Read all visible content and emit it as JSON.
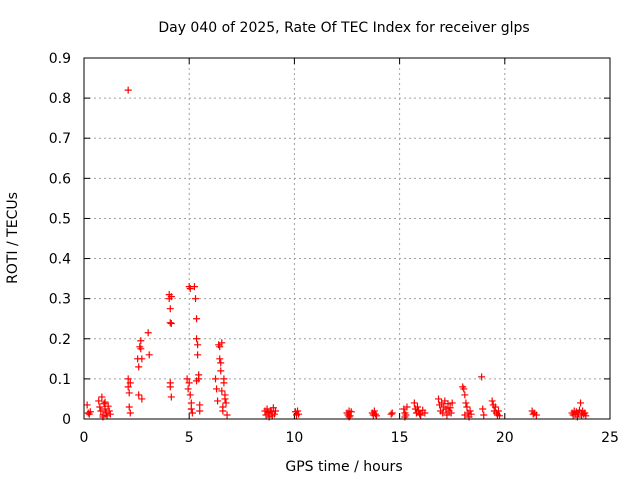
{
  "chart_data": {
    "type": "scatter",
    "title": "Day 040 of 2025, Rate Of TEC Index for receiver glps",
    "xlabel": "GPS time / hours",
    "ylabel": "ROTI / TECUs",
    "xlim": [
      0,
      25
    ],
    "ylim": [
      0,
      0.9
    ],
    "xticks": [
      0,
      5,
      10,
      15,
      20,
      25
    ],
    "xtick_labels": [
      "0",
      "5",
      "10",
      "15",
      "20",
      "25"
    ],
    "yticks": [
      0,
      0.1,
      0.2,
      0.3,
      0.4,
      0.5,
      0.6,
      0.7,
      0.8,
      0.9
    ],
    "ytick_labels": [
      "0",
      "0.1",
      "0.2",
      "0.3",
      "0.4",
      "0.5",
      "0.6",
      "0.7",
      "0.8",
      "0.9"
    ],
    "grid": true,
    "marker": "+",
    "color": "#ff0000",
    "series": [
      {
        "name": "ROTI",
        "points": [
          [
            0.15,
            0.035
          ],
          [
            0.2,
            0.015
          ],
          [
            0.25,
            0.012
          ],
          [
            0.3,
            0.018
          ],
          [
            0.7,
            0.045
          ],
          [
            0.75,
            0.03
          ],
          [
            0.8,
            0.02
          ],
          [
            0.85,
            0.055
          ],
          [
            0.9,
            0.01
          ],
          [
            0.95,
            0.038
          ],
          [
            1.0,
            0.025
          ],
          [
            1.05,
            0.015
          ],
          [
            1.1,
            0.008
          ],
          [
            1.15,
            0.032
          ],
          [
            1.2,
            0.02
          ],
          [
            1.25,
            0.012
          ],
          [
            0.9,
            0.005
          ],
          [
            1.0,
            0.042
          ],
          [
            2.1,
            0.82
          ],
          [
            2.1,
            0.1
          ],
          [
            2.1,
            0.08
          ],
          [
            2.15,
            0.065
          ],
          [
            2.15,
            0.03
          ],
          [
            2.2,
            0.015
          ],
          [
            2.2,
            0.09
          ],
          [
            2.55,
            0.15
          ],
          [
            2.6,
            0.13
          ],
          [
            2.6,
            0.06
          ],
          [
            2.65,
            0.18
          ],
          [
            2.7,
            0.195
          ],
          [
            2.7,
            0.175
          ],
          [
            2.75,
            0.05
          ],
          [
            2.75,
            0.15
          ],
          [
            3.05,
            0.215
          ],
          [
            3.1,
            0.16
          ],
          [
            4.05,
            0.31
          ],
          [
            4.05,
            0.3
          ],
          [
            4.1,
            0.275
          ],
          [
            4.1,
            0.24
          ],
          [
            4.15,
            0.305
          ],
          [
            4.15,
            0.238
          ],
          [
            4.1,
            0.09
          ],
          [
            4.1,
            0.08
          ],
          [
            4.15,
            0.055
          ],
          [
            4.9,
            0.1
          ],
          [
            4.95,
            0.075
          ],
          [
            5.0,
            0.33
          ],
          [
            5.0,
            0.09
          ],
          [
            5.05,
            0.325
          ],
          [
            5.05,
            0.06
          ],
          [
            5.1,
            0.04
          ],
          [
            5.1,
            0.025
          ],
          [
            5.15,
            0.015
          ],
          [
            5.25,
            0.33
          ],
          [
            5.3,
            0.3
          ],
          [
            5.35,
            0.25
          ],
          [
            5.35,
            0.2
          ],
          [
            5.4,
            0.185
          ],
          [
            5.4,
            0.16
          ],
          [
            5.45,
            0.1
          ],
          [
            5.45,
            0.11
          ],
          [
            5.5,
            0.035
          ],
          [
            5.5,
            0.02
          ],
          [
            5.35,
            0.095
          ],
          [
            6.25,
            0.1
          ],
          [
            6.3,
            0.075
          ],
          [
            6.35,
            0.045
          ],
          [
            6.4,
            0.185
          ],
          [
            6.45,
            0.18
          ],
          [
            6.45,
            0.15
          ],
          [
            6.5,
            0.14
          ],
          [
            6.5,
            0.12
          ],
          [
            6.55,
            0.19
          ],
          [
            6.55,
            0.07
          ],
          [
            6.6,
            0.03
          ],
          [
            6.6,
            0.02
          ],
          [
            6.65,
            0.09
          ],
          [
            6.65,
            0.1
          ],
          [
            6.7,
            0.06
          ],
          [
            6.7,
            0.05
          ],
          [
            6.75,
            0.04
          ],
          [
            6.8,
            0.01
          ],
          [
            8.6,
            0.02
          ],
          [
            8.65,
            0.01
          ],
          [
            8.7,
            0.025
          ],
          [
            8.75,
            0.015
          ],
          [
            8.8,
            0.005
          ],
          [
            8.85,
            0.02
          ],
          [
            8.9,
            0.018
          ],
          [
            9.0,
            0.028
          ],
          [
            9.05,
            0.012
          ],
          [
            9.1,
            0.02
          ],
          [
            8.95,
            0.008
          ],
          [
            10.05,
            0.018
          ],
          [
            10.1,
            0.01
          ],
          [
            10.15,
            0.02
          ],
          [
            10.2,
            0.012
          ],
          [
            12.5,
            0.015
          ],
          [
            12.55,
            0.01
          ],
          [
            12.6,
            0.02
          ],
          [
            12.65,
            0.008
          ],
          [
            12.7,
            0.018
          ],
          [
            12.6,
            0.005
          ],
          [
            13.7,
            0.015
          ],
          [
            13.75,
            0.01
          ],
          [
            13.8,
            0.02
          ],
          [
            13.85,
            0.012
          ],
          [
            13.9,
            0.008
          ],
          [
            14.6,
            0.012
          ],
          [
            14.65,
            0.015
          ],
          [
            15.2,
            0.025
          ],
          [
            15.25,
            0.015
          ],
          [
            15.3,
            0.01
          ],
          [
            15.35,
            0.03
          ],
          [
            15.25,
            0.005
          ],
          [
            15.7,
            0.04
          ],
          [
            15.75,
            0.025
          ],
          [
            15.8,
            0.015
          ],
          [
            15.85,
            0.03
          ],
          [
            15.9,
            0.02
          ],
          [
            15.95,
            0.012
          ],
          [
            16.0,
            0.01
          ],
          [
            16.1,
            0.022
          ],
          [
            16.2,
            0.015
          ],
          [
            16.85,
            0.05
          ],
          [
            16.9,
            0.035
          ],
          [
            16.95,
            0.02
          ],
          [
            17.0,
            0.04
          ],
          [
            17.05,
            0.015
          ],
          [
            17.1,
            0.03
          ],
          [
            17.15,
            0.045
          ],
          [
            17.2,
            0.025
          ],
          [
            17.25,
            0.01
          ],
          [
            17.3,
            0.038
          ],
          [
            17.35,
            0.02
          ],
          [
            17.4,
            0.028
          ],
          [
            17.45,
            0.015
          ],
          [
            17.5,
            0.04
          ],
          [
            18.0,
            0.08
          ],
          [
            18.05,
            0.075
          ],
          [
            18.1,
            0.06
          ],
          [
            18.15,
            0.04
          ],
          [
            18.2,
            0.03
          ],
          [
            18.25,
            0.015
          ],
          [
            18.1,
            0.01
          ],
          [
            18.3,
            0.005
          ],
          [
            18.35,
            0.02
          ],
          [
            18.4,
            0.012
          ],
          [
            18.9,
            0.105
          ],
          [
            18.95,
            0.025
          ],
          [
            19.0,
            0.01
          ],
          [
            19.4,
            0.045
          ],
          [
            19.45,
            0.035
          ],
          [
            19.5,
            0.02
          ],
          [
            19.55,
            0.03
          ],
          [
            19.6,
            0.015
          ],
          [
            19.65,
            0.01
          ],
          [
            19.7,
            0.02
          ],
          [
            19.75,
            0.008
          ],
          [
            21.3,
            0.02
          ],
          [
            21.35,
            0.012
          ],
          [
            21.4,
            0.015
          ],
          [
            21.5,
            0.01
          ],
          [
            23.2,
            0.015
          ],
          [
            23.25,
            0.01
          ],
          [
            23.3,
            0.02
          ],
          [
            23.35,
            0.012
          ],
          [
            23.4,
            0.018
          ],
          [
            23.45,
            0.005
          ],
          [
            23.5,
            0.015
          ],
          [
            23.55,
            0.022
          ],
          [
            23.6,
            0.04
          ],
          [
            23.65,
            0.01
          ],
          [
            23.7,
            0.02
          ],
          [
            23.75,
            0.012
          ],
          [
            23.8,
            0.015
          ],
          [
            23.85,
            0.008
          ]
        ]
      }
    ]
  }
}
